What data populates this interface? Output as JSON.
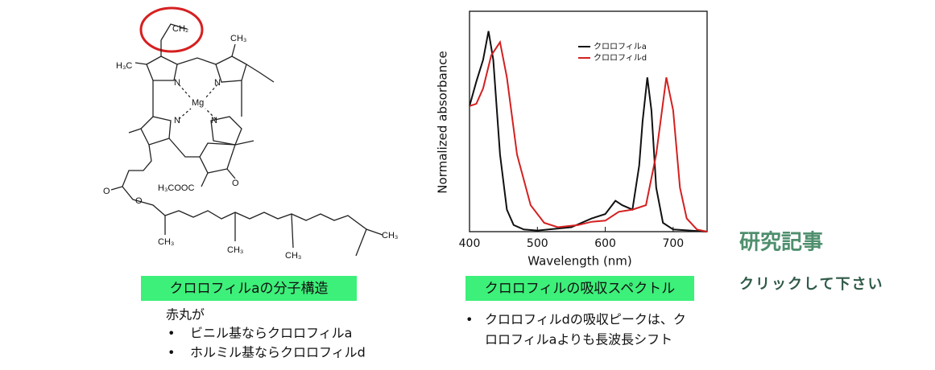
{
  "molecule": {
    "labels": [
      "CH₂",
      "CH₃",
      "H₃C",
      "N",
      "N",
      "N",
      "N",
      "Mg",
      "H₃COOC",
      "O",
      "O",
      "O",
      "CH₃",
      "CH₃",
      "CH₃",
      "CH₃"
    ]
  },
  "left": {
    "caption": "クロロフィルaの分子構造",
    "note": "赤丸が",
    "bullets": [
      "ビニル基ならクロロフィルa",
      "ホルミル基ならクロロフィルd"
    ]
  },
  "chart_data": {
    "type": "line",
    "xlabel": "Wavelength (nm)",
    "ylabel": "Normalized absorbance",
    "xlim": [
      400,
      750
    ],
    "xticks": [
      400,
      500,
      600,
      700
    ],
    "ylim": [
      0,
      1
    ],
    "series": [
      {
        "name": "クロロフィルa",
        "color": "#111111",
        "x": [
          400,
          410,
          420,
          428,
          435,
          445,
          455,
          465,
          480,
          500,
          550,
          580,
          600,
          615,
          625,
          640,
          650,
          655,
          662,
          668,
          675,
          685,
          700,
          750
        ],
        "values": [
          0.57,
          0.68,
          0.78,
          0.91,
          0.78,
          0.35,
          0.1,
          0.03,
          0.01,
          0.005,
          0.02,
          0.06,
          0.08,
          0.14,
          0.12,
          0.1,
          0.3,
          0.5,
          0.7,
          0.55,
          0.2,
          0.04,
          0.01,
          0
        ]
      },
      {
        "name": "クロロフィルd",
        "color": "#d42020",
        "x": [
          400,
          410,
          420,
          432,
          445,
          455,
          470,
          490,
          510,
          530,
          560,
          580,
          600,
          620,
          640,
          660,
          675,
          690,
          700,
          710,
          720,
          735,
          750
        ],
        "values": [
          0.57,
          0.58,
          0.65,
          0.8,
          0.86,
          0.7,
          0.35,
          0.12,
          0.04,
          0.02,
          0.03,
          0.045,
          0.05,
          0.09,
          0.1,
          0.12,
          0.35,
          0.7,
          0.55,
          0.2,
          0.06,
          0.01,
          0
        ]
      }
    ]
  },
  "right": {
    "caption": "クロロフィルの吸収スペクトル",
    "bullet_lines": [
      "クロロフィルdの吸収ピークは、ク",
      "ロロフィルaよりも長波長シフト"
    ]
  },
  "link": {
    "title": "研究記事",
    "subtitle": "クリックして下さい"
  }
}
